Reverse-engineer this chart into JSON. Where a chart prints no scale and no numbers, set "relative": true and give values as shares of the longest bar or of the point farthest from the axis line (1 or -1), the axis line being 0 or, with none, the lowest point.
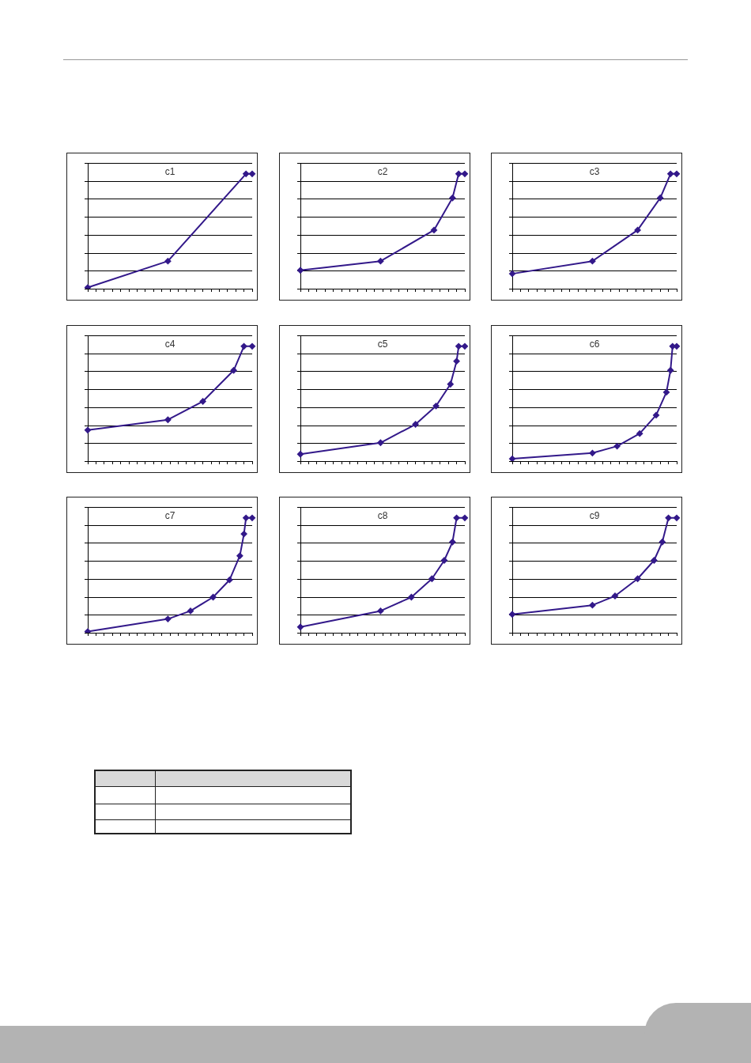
{
  "chart_data": [
    {
      "type": "line",
      "title": "c1",
      "relative": true,
      "color": "#33198a",
      "marker": "diamond",
      "grid": "y",
      "legend": false,
      "categories": [
        null,
        null,
        null,
        null,
        null,
        null,
        null,
        null,
        null,
        null,
        null,
        null,
        null,
        null,
        null,
        null,
        null,
        null,
        null,
        null,
        null,
        null,
        null,
        null,
        null,
        null,
        null,
        null,
        null,
        null,
        null,
        null,
        null,
        null,
        null,
        null,
        null,
        null,
        null,
        null,
        null,
        null,
        null,
        null,
        null,
        null,
        null,
        null,
        null,
        null,
        null,
        null,
        null,
        null,
        null,
        null,
        null,
        null,
        null,
        null,
        null,
        null,
        null,
        null,
        null,
        null,
        null,
        null,
        null,
        null,
        null,
        null,
        null,
        null,
        null,
        null,
        null,
        null,
        null,
        null,
        null
      ],
      "values": [
        0.01,
        null,
        null,
        null,
        null,
        null,
        null,
        null,
        null,
        null,
        null,
        null,
        null,
        null,
        null,
        null,
        null,
        null,
        null,
        null,
        null,
        null,
        null,
        null,
        null,
        null,
        null,
        null,
        null,
        null,
        null,
        null,
        null,
        null,
        null,
        null,
        null,
        null,
        null,
        0.24,
        null,
        null,
        null,
        null,
        null,
        null,
        null,
        null,
        null,
        null,
        null,
        null,
        null,
        null,
        null,
        null,
        null,
        null,
        null,
        null,
        null,
        null,
        null,
        null,
        null,
        null,
        null,
        null,
        null,
        null,
        null,
        null,
        null,
        null,
        null,
        null,
        null,
        1,
        null,
        null,
        1
      ]
    },
    {
      "type": "line",
      "title": "c2",
      "relative": true,
      "color": "#33198a",
      "marker": "diamond",
      "grid": "y",
      "legend": false,
      "categories": [
        null,
        null,
        null,
        null,
        null,
        null,
        null,
        null,
        null,
        null,
        null,
        null,
        null,
        null,
        null,
        null,
        null,
        null,
        null,
        null,
        null,
        null,
        null,
        null,
        null,
        null,
        null,
        null,
        null,
        null,
        null,
        null,
        null,
        null,
        null,
        null,
        null,
        null,
        null,
        null,
        null,
        null,
        null,
        null,
        null,
        null,
        null,
        null,
        null,
        null,
        null,
        null,
        null,
        null,
        null,
        null,
        null,
        null,
        null,
        null,
        null,
        null,
        null,
        null,
        null,
        null,
        null,
        null,
        null,
        null,
        null,
        null,
        null,
        null,
        null,
        null,
        null,
        null,
        null,
        null,
        null
      ],
      "values": [
        0.16,
        null,
        null,
        null,
        null,
        null,
        null,
        null,
        null,
        null,
        null,
        null,
        null,
        null,
        null,
        null,
        null,
        null,
        null,
        null,
        null,
        null,
        null,
        null,
        null,
        null,
        null,
        null,
        null,
        null,
        null,
        null,
        null,
        null,
        null,
        null,
        null,
        null,
        null,
        0.24,
        null,
        null,
        null,
        null,
        null,
        null,
        null,
        null,
        null,
        null,
        null,
        null,
        null,
        null,
        null,
        null,
        null,
        null,
        null,
        null,
        null,
        null,
        null,
        null,
        null,
        0.51,
        null,
        null,
        null,
        null,
        null,
        null,
        null,
        null,
        0.79,
        null,
        null,
        1,
        null,
        null,
        1
      ]
    },
    {
      "type": "line",
      "title": "c3",
      "relative": true,
      "color": "#33198a",
      "marker": "diamond",
      "grid": "y",
      "legend": false,
      "categories": [
        null,
        null,
        null,
        null,
        null,
        null,
        null,
        null,
        null,
        null,
        null,
        null,
        null,
        null,
        null,
        null,
        null,
        null,
        null,
        null,
        null,
        null,
        null,
        null,
        null,
        null,
        null,
        null,
        null,
        null,
        null,
        null,
        null,
        null,
        null,
        null,
        null,
        null,
        null,
        null,
        null,
        null,
        null,
        null,
        null,
        null,
        null,
        null,
        null,
        null,
        null,
        null,
        null,
        null,
        null,
        null,
        null,
        null,
        null,
        null,
        null,
        null,
        null,
        null,
        null,
        null,
        null,
        null,
        null,
        null,
        null,
        null,
        null,
        null,
        null,
        null,
        null,
        null,
        null,
        null,
        null
      ],
      "values": [
        0.13,
        null,
        null,
        null,
        null,
        null,
        null,
        null,
        null,
        null,
        null,
        null,
        null,
        null,
        null,
        null,
        null,
        null,
        null,
        null,
        null,
        null,
        null,
        null,
        null,
        null,
        null,
        null,
        null,
        null,
        null,
        null,
        null,
        null,
        null,
        null,
        null,
        null,
        null,
        0.24,
        null,
        null,
        null,
        null,
        null,
        null,
        null,
        null,
        null,
        null,
        null,
        null,
        null,
        null,
        null,
        null,
        null,
        null,
        null,
        null,
        null,
        0.51,
        null,
        null,
        null,
        null,
        null,
        null,
        null,
        null,
        null,
        null,
        0.79,
        null,
        null,
        null,
        null,
        1,
        null,
        null,
        1
      ]
    },
    {
      "type": "line",
      "title": "c4",
      "relative": true,
      "color": "#33198a",
      "marker": "diamond",
      "grid": "y",
      "legend": false,
      "categories": [
        null,
        null,
        null,
        null,
        null,
        null,
        null,
        null,
        null,
        null,
        null,
        null,
        null,
        null,
        null,
        null,
        null,
        null,
        null,
        null,
        null,
        null,
        null,
        null,
        null,
        null,
        null,
        null,
        null,
        null,
        null,
        null,
        null,
        null,
        null,
        null,
        null,
        null,
        null,
        null,
        null,
        null,
        null,
        null,
        null,
        null,
        null,
        null,
        null,
        null,
        null,
        null,
        null,
        null,
        null,
        null,
        null,
        null,
        null,
        null,
        null,
        null,
        null,
        null,
        null,
        null,
        null,
        null,
        null,
        null,
        null,
        null,
        null,
        null,
        null,
        null,
        null,
        null,
        null,
        null,
        null
      ],
      "values": [
        0.27,
        null,
        null,
        null,
        null,
        null,
        null,
        null,
        null,
        null,
        null,
        null,
        null,
        null,
        null,
        null,
        null,
        null,
        null,
        null,
        null,
        null,
        null,
        null,
        null,
        null,
        null,
        null,
        null,
        null,
        null,
        null,
        null,
        null,
        null,
        null,
        null,
        null,
        null,
        0.36,
        null,
        null,
        null,
        null,
        null,
        null,
        null,
        null,
        null,
        null,
        null,
        null,
        null,
        null,
        null,
        null,
        0.52,
        null,
        null,
        null,
        null,
        null,
        null,
        null,
        null,
        null,
        null,
        null,
        null,
        null,
        null,
        0.79,
        null,
        null,
        null,
        null,
        1,
        null,
        null,
        null,
        1
      ]
    },
    {
      "type": "line",
      "title": "c5",
      "relative": true,
      "color": "#33198a",
      "marker": "diamond",
      "grid": "y",
      "legend": false,
      "categories": [
        null,
        null,
        null,
        null,
        null,
        null,
        null,
        null,
        null,
        null,
        null,
        null,
        null,
        null,
        null,
        null,
        null,
        null,
        null,
        null,
        null,
        null,
        null,
        null,
        null,
        null,
        null,
        null,
        null,
        null,
        null,
        null,
        null,
        null,
        null,
        null,
        null,
        null,
        null,
        null,
        null,
        null,
        null,
        null,
        null,
        null,
        null,
        null,
        null,
        null,
        null,
        null,
        null,
        null,
        null,
        null,
        null,
        null,
        null,
        null,
        null,
        null,
        null,
        null,
        null,
        null,
        null,
        null,
        null,
        null,
        null,
        null,
        null,
        null,
        null,
        null,
        null,
        null,
        null,
        null,
        null
      ],
      "values": [
        0.06,
        null,
        null,
        null,
        null,
        null,
        null,
        null,
        null,
        null,
        null,
        null,
        null,
        null,
        null,
        null,
        null,
        null,
        null,
        null,
        null,
        null,
        null,
        null,
        null,
        null,
        null,
        null,
        null,
        null,
        null,
        null,
        null,
        null,
        null,
        null,
        null,
        null,
        null,
        0.16,
        null,
        null,
        null,
        null,
        null,
        null,
        null,
        null,
        null,
        null,
        null,
        null,
        null,
        null,
        null,
        null,
        0.32,
        null,
        null,
        null,
        null,
        null,
        null,
        null,
        null,
        null,
        0.48,
        null,
        null,
        null,
        null,
        null,
        null,
        0.67,
        null,
        null,
        0.87,
        1,
        null,
        null,
        1
      ]
    },
    {
      "type": "line",
      "title": "c6",
      "relative": true,
      "color": "#33198a",
      "marker": "diamond",
      "grid": "y",
      "legend": false,
      "categories": [
        null,
        null,
        null,
        null,
        null,
        null,
        null,
        null,
        null,
        null,
        null,
        null,
        null,
        null,
        null,
        null,
        null,
        null,
        null,
        null,
        null,
        null,
        null,
        null,
        null,
        null,
        null,
        null,
        null,
        null,
        null,
        null,
        null,
        null,
        null,
        null,
        null,
        null,
        null,
        null,
        null,
        null,
        null,
        null,
        null,
        null,
        null,
        null,
        null,
        null,
        null,
        null,
        null,
        null,
        null,
        null,
        null,
        null,
        null,
        null,
        null,
        null,
        null,
        null,
        null,
        null,
        null,
        null,
        null,
        null,
        null,
        null,
        null,
        null,
        null,
        null,
        null,
        null,
        null,
        null,
        null
      ],
      "values": [
        0.02,
        null,
        null,
        null,
        null,
        null,
        null,
        null,
        null,
        null,
        null,
        null,
        null,
        null,
        null,
        null,
        null,
        null,
        null,
        null,
        null,
        null,
        null,
        null,
        null,
        null,
        null,
        null,
        null,
        null,
        null,
        null,
        null,
        null,
        null,
        null,
        null,
        null,
        null,
        0.07,
        null,
        null,
        null,
        null,
        null,
        null,
        null,
        null,
        null,
        null,
        null,
        0.13,
        null,
        null,
        null,
        null,
        null,
        null,
        null,
        null,
        null,
        null,
        0.24,
        null,
        null,
        null,
        null,
        null,
        null,
        null,
        0.4,
        null,
        null,
        null,
        null,
        0.6,
        null,
        0.79,
        1,
        null,
        1
      ]
    },
    {
      "type": "line",
      "title": "c7",
      "relative": true,
      "color": "#33198a",
      "marker": "diamond",
      "grid": "y",
      "legend": false,
      "categories": [
        null,
        null,
        null,
        null,
        null,
        null,
        null,
        null,
        null,
        null,
        null,
        null,
        null,
        null,
        null,
        null,
        null,
        null,
        null,
        null,
        null,
        null,
        null,
        null,
        null,
        null,
        null,
        null,
        null,
        null,
        null,
        null,
        null,
        null,
        null,
        null,
        null,
        null,
        null,
        null,
        null,
        null,
        null,
        null,
        null,
        null,
        null,
        null,
        null,
        null,
        null,
        null,
        null,
        null,
        null,
        null,
        null,
        null,
        null,
        null,
        null,
        null,
        null,
        null,
        null,
        null,
        null,
        null,
        null,
        null,
        null,
        null,
        null,
        null,
        null,
        null,
        null,
        null,
        null,
        null,
        null
      ],
      "values": [
        0.01,
        null,
        null,
        null,
        null,
        null,
        null,
        null,
        null,
        null,
        null,
        null,
        null,
        null,
        null,
        null,
        null,
        null,
        null,
        null,
        null,
        null,
        null,
        null,
        null,
        null,
        null,
        null,
        null,
        null,
        null,
        null,
        null,
        null,
        null,
        null,
        null,
        null,
        null,
        0.12,
        null,
        null,
        null,
        null,
        null,
        null,
        null,
        null,
        null,
        null,
        0.19,
        null,
        null,
        null,
        null,
        null,
        null,
        null,
        null,
        null,
        null,
        0.31,
        null,
        null,
        null,
        null,
        null,
        null,
        null,
        0.46,
        null,
        null,
        null,
        null,
        0.67,
        null,
        0.86,
        1,
        null,
        null,
        1
      ]
    },
    {
      "type": "line",
      "title": "c8",
      "relative": true,
      "color": "#33198a",
      "marker": "diamond",
      "grid": "y",
      "legend": false,
      "categories": [
        null,
        null,
        null,
        null,
        null,
        null,
        null,
        null,
        null,
        null,
        null,
        null,
        null,
        null,
        null,
        null,
        null,
        null,
        null,
        null,
        null,
        null,
        null,
        null,
        null,
        null,
        null,
        null,
        null,
        null,
        null,
        null,
        null,
        null,
        null,
        null,
        null,
        null,
        null,
        null,
        null,
        null,
        null,
        null,
        null,
        null,
        null,
        null,
        null,
        null,
        null,
        null,
        null,
        null,
        null,
        null,
        null,
        null,
        null,
        null,
        null,
        null,
        null,
        null,
        null,
        null,
        null,
        null,
        null,
        null,
        null,
        null,
        null,
        null,
        null,
        null,
        null,
        null,
        null,
        null,
        null
      ],
      "values": [
        0.05,
        null,
        null,
        null,
        null,
        null,
        null,
        null,
        null,
        null,
        null,
        null,
        null,
        null,
        null,
        null,
        null,
        null,
        null,
        null,
        null,
        null,
        null,
        null,
        null,
        null,
        null,
        null,
        null,
        null,
        null,
        null,
        null,
        null,
        null,
        null,
        null,
        null,
        null,
        0.19,
        null,
        null,
        null,
        null,
        null,
        null,
        null,
        null,
        null,
        null,
        null,
        null,
        null,
        null,
        0.31,
        null,
        null,
        null,
        null,
        null,
        null,
        null,
        null,
        null,
        0.47,
        null,
        null,
        null,
        null,
        null,
        0.63,
        null,
        null,
        null,
        0.79,
        null,
        1,
        null,
        null,
        null,
        1
      ]
    },
    {
      "type": "line",
      "title": "c9",
      "relative": true,
      "color": "#33198a",
      "marker": "diamond",
      "grid": "y",
      "legend": false,
      "categories": [
        null,
        null,
        null,
        null,
        null,
        null,
        null,
        null,
        null,
        null,
        null,
        null,
        null,
        null,
        null,
        null,
        null,
        null,
        null,
        null,
        null,
        null,
        null,
        null,
        null,
        null,
        null,
        null,
        null,
        null,
        null,
        null,
        null,
        null,
        null,
        null,
        null,
        null,
        null,
        null,
        null,
        null,
        null,
        null,
        null,
        null,
        null,
        null,
        null,
        null,
        null,
        null,
        null,
        null,
        null,
        null,
        null,
        null,
        null,
        null,
        null,
        null,
        null,
        null,
        null,
        null,
        null,
        null,
        null,
        null,
        null,
        null,
        null,
        null,
        null,
        null,
        null,
        null,
        null,
        null,
        null
      ],
      "values": [
        0.16,
        null,
        null,
        null,
        null,
        null,
        null,
        null,
        null,
        null,
        null,
        null,
        null,
        null,
        null,
        null,
        null,
        null,
        null,
        null,
        null,
        null,
        null,
        null,
        null,
        null,
        null,
        null,
        null,
        null,
        null,
        null,
        null,
        null,
        null,
        null,
        null,
        null,
        null,
        0.24,
        null,
        null,
        null,
        null,
        null,
        null,
        null,
        null,
        null,
        null,
        0.32,
        null,
        null,
        null,
        null,
        null,
        null,
        null,
        null,
        null,
        null,
        0.47,
        null,
        null,
        null,
        null,
        null,
        null,
        null,
        0.63,
        null,
        null,
        null,
        0.79,
        null,
        null,
        1,
        null,
        null,
        null,
        1
      ]
    }
  ]
}
